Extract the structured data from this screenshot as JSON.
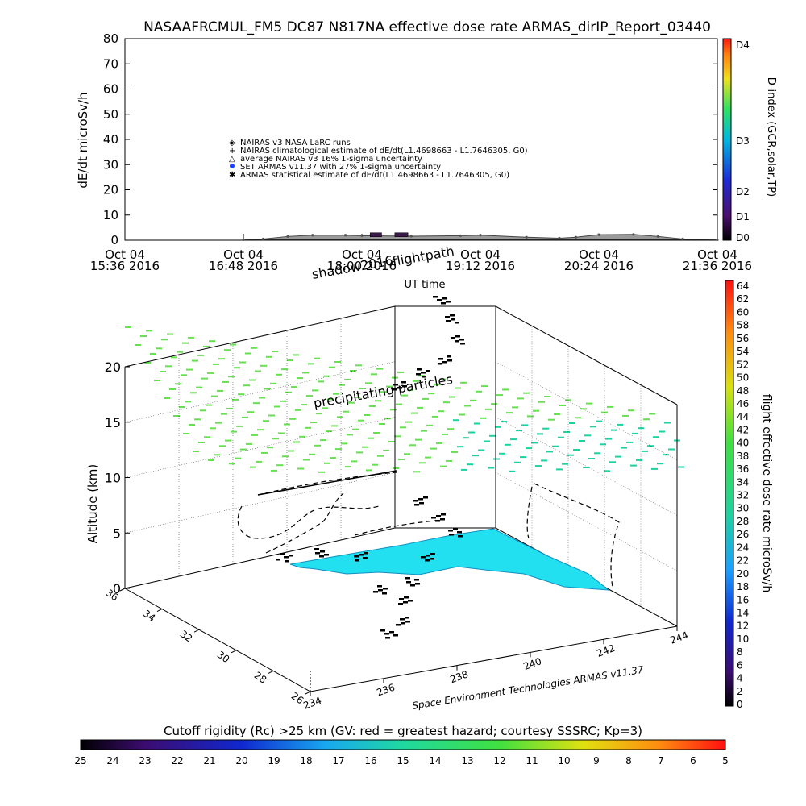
{
  "title": "NASAAFRCMUL_FM5 DC87 N817NA effective dose rate ARMAS_dirIP_Report_03440",
  "top_panel": {
    "ylabel": "dE/dt microSv/h",
    "xlabel": "UT time",
    "legend": [
      "NAIRAS v3 NASA LaRC runs",
      "NAIRAS climatological estimate of dE/dt(L1.4698663 - L1.7646305, G0)",
      "average NAIRAS v3 16% 1-sigma uncertainty",
      "SET ARMAS v11.37 with 27% 1-sigma uncertainty",
      "ARMAS statistical estimate of dE/dt(L1.4698663 - L1.7646305, G0)"
    ],
    "dindex_label": "D-index (GCR,solar,TP)",
    "dindex_ticks": [
      "D4",
      "D3",
      "D2",
      "D1",
      "D0"
    ]
  },
  "bottom_panel": {
    "zlabel": "Altitude (km)",
    "annotations": {
      "shadow": "shadow2016",
      "flightpath": "flightpath",
      "precip": "precipitating particles",
      "credit": "Space Environment Technologies ARMAS v11.37"
    },
    "lat_ticks": [
      "36",
      "34",
      "32",
      "30",
      "28",
      "26"
    ],
    "lon_ticks": [
      "234",
      "236",
      "238",
      "240",
      "242",
      "244"
    ],
    "alt_ticks": [
      "0",
      "5",
      "10",
      "15",
      "20"
    ],
    "dose_colorbar_label": "flight effective dose rate microSv/h",
    "dose_colorbar_ticks": [
      "64",
      "62",
      "60",
      "58",
      "56",
      "54",
      "52",
      "50",
      "48",
      "46",
      "44",
      "42",
      "40",
      "38",
      "36",
      "34",
      "32",
      "30",
      "28",
      "26",
      "24",
      "22",
      "20",
      "18",
      "16",
      "14",
      "12",
      "10",
      "8",
      "6",
      "4",
      "2",
      "0"
    ],
    "cutoff_label": "Cutoff rigidity (Rc) >25 km (GV: red = greatest hazard; courtesy SSSRC; Kp=3)",
    "cutoff_ticks": [
      "25",
      "24",
      "23",
      "22",
      "21",
      "20",
      "19",
      "18",
      "17",
      "16",
      "15",
      "14",
      "13",
      "12",
      "11",
      "10",
      "9",
      "8",
      "7",
      "6",
      "5"
    ]
  },
  "chart_data": [
    {
      "type": "scatter",
      "title": "NASAAFRCMUL_FM5 DC87 N817NA effective dose rate ARMAS_dirIP_Report_03440",
      "xlabel": "UT time",
      "ylabel": "dE/dt microSv/h",
      "ylim": [
        0,
        80
      ],
      "yticks": [
        "0",
        "10",
        "20",
        "30",
        "40",
        "50",
        "60",
        "70",
        "80"
      ],
      "xlim": [
        "2016-10-04 15:36",
        "2016-10-04 21:36"
      ],
      "xticks": [
        {
          "date": "Oct 04",
          "time": "15:36 2016"
        },
        {
          "date": "Oct 04",
          "time": "16:48 2016"
        },
        {
          "date": "Oct 04",
          "time": "18:00 2016"
        },
        {
          "date": "Oct 04",
          "time": "19:12 2016"
        },
        {
          "date": "Oct 04",
          "time": "20:24 2016"
        },
        {
          "date": "Oct 04",
          "time": "21:36 2016"
        }
      ],
      "series": [
        {
          "name": "NAIRAS v3 NASA LaRC runs",
          "points": [
            [
              "2016-10-04 16:48",
              0.2
            ],
            [
              "2016-10-04 17:00",
              0.5
            ],
            [
              "2016-10-04 17:15",
              1.5
            ],
            [
              "2016-10-04 17:30",
              2.0
            ],
            [
              "2016-10-04 17:50",
              2.0
            ],
            [
              "2016-10-04 18:00",
              1.8
            ],
            [
              "2016-10-04 18:30",
              1.6
            ],
            [
              "2016-10-04 19:00",
              1.8
            ],
            [
              "2016-10-04 19:12",
              2.0
            ],
            [
              "2016-10-04 19:40",
              1.2
            ],
            [
              "2016-10-04 20:00",
              0.8
            ],
            [
              "2016-10-04 20:10",
              1.2
            ],
            [
              "2016-10-04 20:24",
              2.2
            ],
            [
              "2016-10-04 20:45",
              2.3
            ],
            [
              "2016-10-04 21:00",
              1.5
            ],
            [
              "2016-10-04 21:15",
              0.5
            ],
            [
              "2016-10-04 21:36",
              0.2
            ]
          ]
        },
        {
          "name": "SET ARMAS v11.37 with 27% 1-sigma uncertainty",
          "points": [
            [
              "2016-10-04 18:05",
              2.0
            ],
            [
              "2016-10-04 18:12",
              2.0
            ],
            [
              "2016-10-04 18:20",
              2.0
            ],
            [
              "2016-10-04 18:28",
              2.0
            ]
          ]
        }
      ]
    },
    {
      "type": "scatter",
      "xlabel": "longitude",
      "ylabel": "latitude",
      "zlabel": "Altitude (km)",
      "xlim": [
        234,
        244
      ],
      "ylim": [
        26,
        36
      ],
      "zlim": [
        0,
        20
      ],
      "series": [
        {
          "name": "flightpath",
          "points": [
            [
              241.5,
              35.0,
              0
            ],
            [
              241.0,
              33.5,
              0
            ],
            [
              240.0,
              32.5,
              0
            ],
            [
              239.3,
              31.5,
              0
            ],
            [
              239.0,
              30.5,
              0
            ],
            [
              238.6,
              29.5,
              0
            ],
            [
              238.0,
              28.5,
              0
            ],
            [
              237.4,
              27.8,
              0
            ]
          ]
        }
      ]
    }
  ]
}
